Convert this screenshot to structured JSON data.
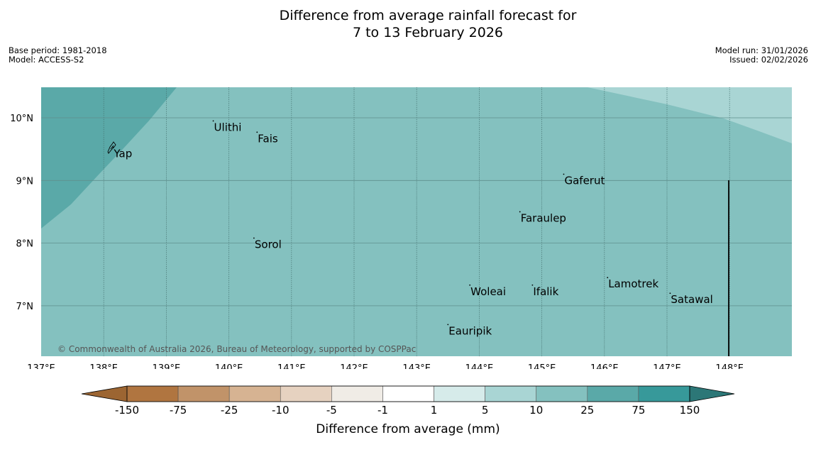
{
  "title": {
    "line1": "Difference from average rainfall forecast for",
    "line2": "7 to 13 February 2026"
  },
  "meta_left": {
    "base_period": "Base period: 1981-2018",
    "model": "Model: ACCESS-S2"
  },
  "meta_right": {
    "model_run": "Model run: 31/01/2026",
    "issued": "Issued: 02/02/2026"
  },
  "map": {
    "lon_range": [
      137,
      149
    ],
    "lat_range": [
      6.3,
      10.5
    ],
    "lon_ticks": [
      {
        "value": 137,
        "label": "137°E"
      },
      {
        "value": 138,
        "label": "138°E"
      },
      {
        "value": 139,
        "label": "139°E"
      },
      {
        "value": 140,
        "label": "140°E"
      },
      {
        "value": 141,
        "label": "141°E"
      },
      {
        "value": 142,
        "label": "142°E"
      },
      {
        "value": 143,
        "label": "143°E"
      },
      {
        "value": 144,
        "label": "144°E"
      },
      {
        "value": 145,
        "label": "145°E"
      },
      {
        "value": 146,
        "label": "146°E"
      },
      {
        "value": 147,
        "label": "147°E"
      },
      {
        "value": 148,
        "label": "148°E"
      }
    ],
    "lat_ticks": [
      {
        "value": 10,
        "label": "10°N"
      },
      {
        "value": 9,
        "label": "9°N"
      },
      {
        "value": 8,
        "label": "8°N"
      },
      {
        "value": 7,
        "label": "7°N"
      }
    ],
    "islands": [
      {
        "name": "Ulithi",
        "lon": 139.75,
        "lat": 9.95
      },
      {
        "name": "Fais",
        "lon": 140.45,
        "lat": 9.77
      },
      {
        "name": "Yap",
        "lon": 138.15,
        "lat": 9.53
      },
      {
        "name": "Gaferut",
        "lon": 145.35,
        "lat": 9.1
      },
      {
        "name": "Faraulep",
        "lon": 144.65,
        "lat": 8.5
      },
      {
        "name": "Sorol",
        "lon": 140.4,
        "lat": 8.08
      },
      {
        "name": "Lamotrek",
        "lon": 146.05,
        "lat": 7.45
      },
      {
        "name": "Woleai",
        "lon": 143.85,
        "lat": 7.33
      },
      {
        "name": "Ifalik",
        "lon": 144.85,
        "lat": 7.33
      },
      {
        "name": "Satawal",
        "lon": 147.05,
        "lat": 7.2
      },
      {
        "name": "Eauripik",
        "lon": 143.5,
        "lat": 6.7
      }
    ],
    "copyright": "© Commonwealth of Australia 2026, Bureau of Meteorology, supported by COSPPac",
    "colors": {
      "class_5_10": "#a9d5d4",
      "class_10_25": "#84c1bf",
      "class_25_75": "#5aa9a8"
    }
  },
  "colorbar": {
    "label": "Difference from average (mm)",
    "ticks": [
      "-150",
      "-75",
      "-25",
      "-10",
      "-5",
      "-1",
      "1",
      "5",
      "10",
      "25",
      "75",
      "150"
    ],
    "colors": [
      "#9c6532",
      "#b07540",
      "#c19369",
      "#d6b392",
      "#e6d2c0",
      "#f0ece6",
      "#ffffff",
      "#d6ebea",
      "#a9d5d4",
      "#84c1bf",
      "#5aa9a8",
      "#37999a",
      "#2c7777"
    ]
  }
}
